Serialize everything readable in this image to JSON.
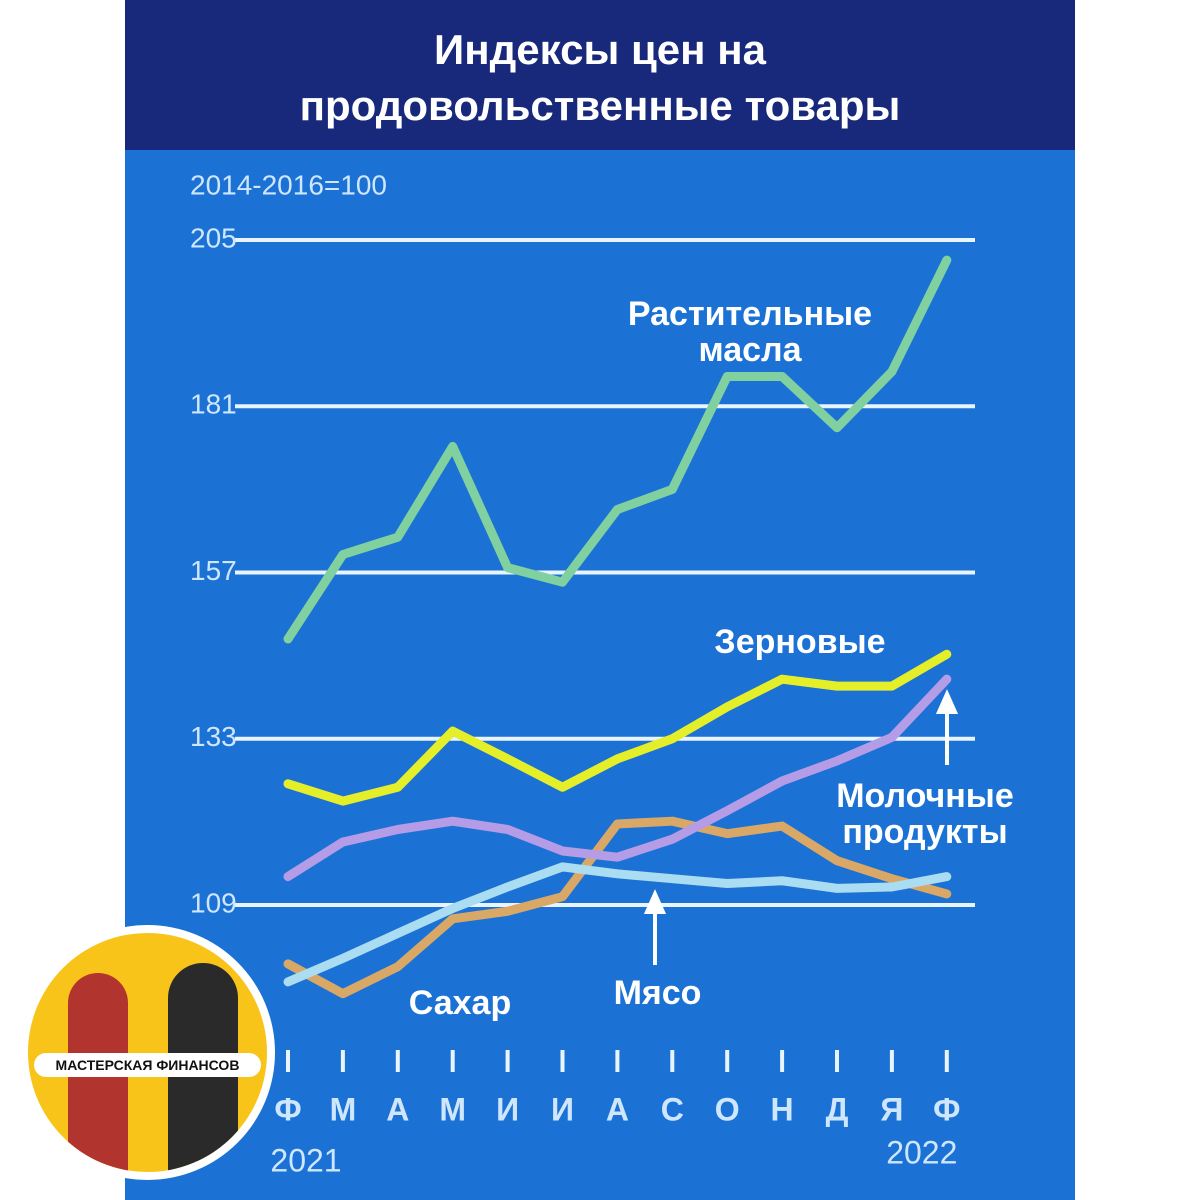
{
  "chart_data": {
    "type": "line",
    "title": "Индексы цен на продовольственные товары",
    "unit_note": "2014-2016=100",
    "categories": [
      "Ф",
      "М",
      "А",
      "М",
      "И",
      "И",
      "А",
      "С",
      "О",
      "Н",
      "Д",
      "Я",
      "Ф"
    ],
    "years": [
      "2021",
      "2022"
    ],
    "ylim": [
      90,
      205
    ],
    "yticks": [
      109,
      133,
      157,
      181,
      205
    ],
    "grid": true,
    "series": [
      {
        "name": "Растительные масла",
        "color": "#80d0a0",
        "values": [
          147.4,
          159.6,
          162.1,
          175.2,
          157.7,
          155.6,
          166.1,
          169,
          185.3,
          185.3,
          177.9,
          186,
          202.1
        ]
      },
      {
        "name": "Зерновые",
        "color": "#e4ef2a",
        "values": [
          126.5,
          124,
          126,
          134.1,
          130.1,
          126,
          130.1,
          133,
          137.6,
          141.6,
          140.6,
          140.6,
          145.2
        ]
      },
      {
        "name": "Молочные продукты",
        "color": "#b59ce6",
        "values": [
          113.1,
          118.1,
          119.9,
          121.1,
          119.9,
          116.8,
          115.9,
          118.5,
          122.6,
          126.9,
          129.8,
          133.2,
          141.6
        ]
      },
      {
        "name": "Сахар",
        "color": "#d9a866",
        "values": [
          100.5,
          96.2,
          100.1,
          107,
          108.1,
          110.2,
          120.7,
          121.1,
          119.3,
          120.4,
          115.4,
          112.8,
          110.6
        ]
      },
      {
        "name": "Мясо",
        "color": "#aadcf2",
        "values": [
          97.9,
          101.3,
          104.9,
          108.5,
          111.6,
          114.5,
          113.5,
          112.8,
          112.1,
          112.5,
          111.4,
          111.6,
          113.1
        ]
      }
    ]
  },
  "logo": {
    "text": "МАСТЕРСКАЯ ФИНАНСОВ"
  }
}
